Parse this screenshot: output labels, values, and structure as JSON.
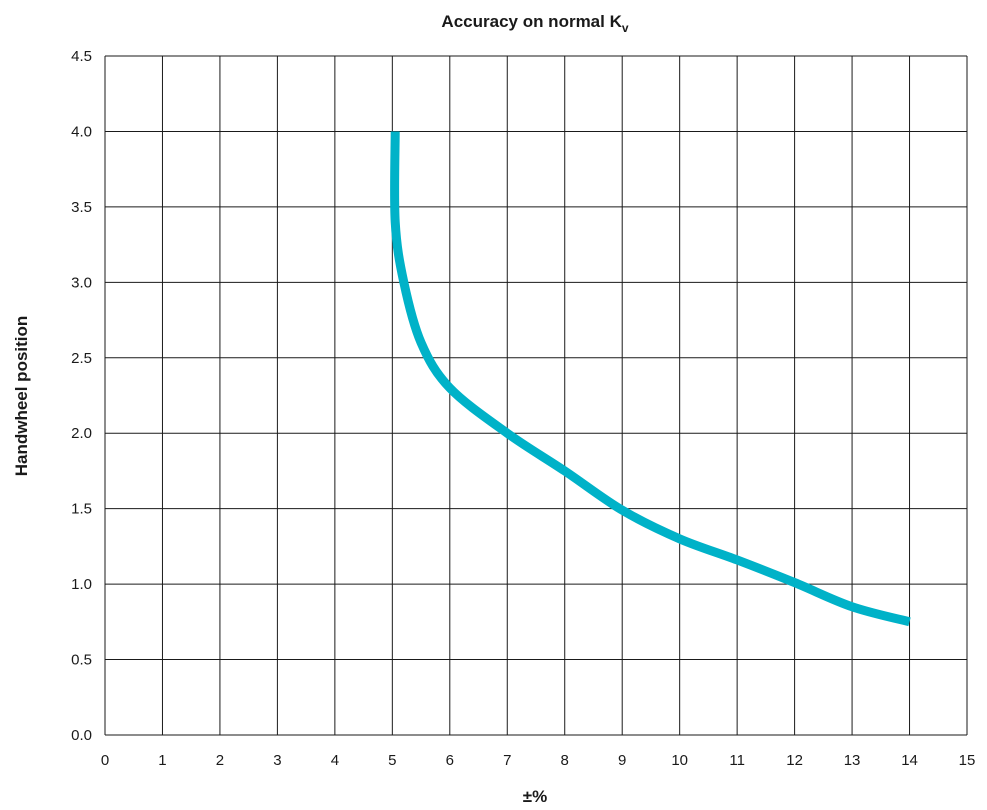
{
  "chart_data": {
    "type": "line",
    "title": "Accuracy on normal K",
    "title_subscript": "v",
    "xlabel": "±%",
    "ylabel": "Handwheel position",
    "xlim": [
      0,
      15
    ],
    "ylim": [
      0,
      4.5
    ],
    "x_ticks": [
      "0",
      "1",
      "2",
      "3",
      "4",
      "5",
      "6",
      "7",
      "8",
      "9",
      "10",
      "11",
      "12",
      "13",
      "14",
      "15"
    ],
    "y_ticks": [
      "0.0",
      "0.5",
      "1.0",
      "1.5",
      "2.0",
      "2.5",
      "3.0",
      "3.5",
      "4.0",
      "4.5"
    ],
    "grid": true,
    "series": [
      {
        "color": "#00b2c8",
        "points": [
          [
            5.05,
            4.0
          ],
          [
            5.05,
            3.4
          ],
          [
            5.2,
            3.0
          ],
          [
            5.5,
            2.6
          ],
          [
            6.0,
            2.3
          ],
          [
            7.0,
            2.0
          ],
          [
            8.0,
            1.75
          ],
          [
            9.0,
            1.49
          ],
          [
            10.0,
            1.3
          ],
          [
            11.0,
            1.16
          ],
          [
            12.0,
            1.01
          ],
          [
            13.0,
            0.85
          ],
          [
            14.0,
            0.75
          ]
        ]
      }
    ]
  }
}
